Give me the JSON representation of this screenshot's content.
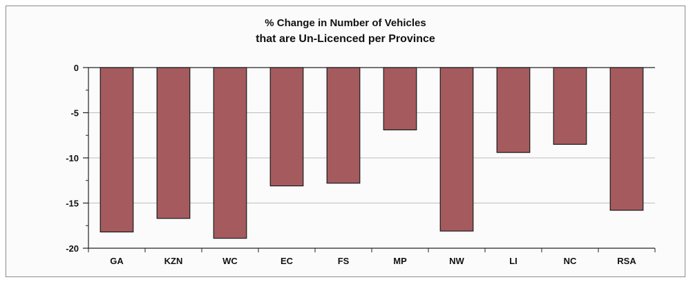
{
  "chart_data": {
    "type": "bar",
    "title_line1": "% Change in Number of Vehicles",
    "title_line2": "that are Un-Licenced per Province",
    "categories": [
      "GA",
      "KZN",
      "WC",
      "EC",
      "FS",
      "MP",
      "NW",
      "LI",
      "NC",
      "RSA"
    ],
    "values": [
      -18.2,
      -16.7,
      -18.9,
      -13.1,
      -12.8,
      -6.9,
      -18.1,
      -9.4,
      -8.5,
      -15.8
    ],
    "ylim": [
      -20,
      0
    ],
    "yticks": [
      0,
      -5,
      -10,
      -15,
      -20
    ],
    "ytick_labels": [
      "0",
      "-5",
      "-10",
      "-15",
      "-20"
    ],
    "grid": true,
    "legend": "none",
    "bar_color": "#a55b5e",
    "bar_edge_color": "#1a1a1a",
    "grid_color": "#bdbdbd"
  }
}
